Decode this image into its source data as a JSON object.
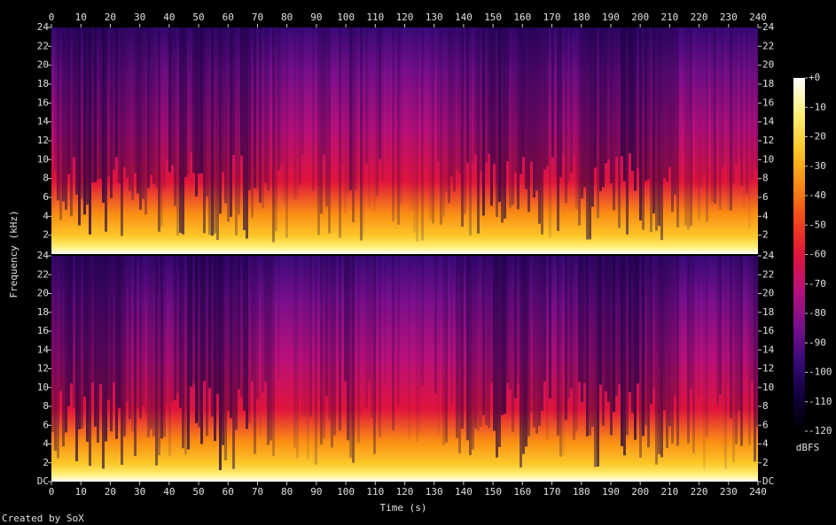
{
  "chart_data": {
    "type": "spectrogram",
    "x_label": "Time (s)",
    "y_label": "Frequency (kHz)",
    "footer": "Created by SoX",
    "xlim": [
      0,
      240
    ],
    "xticks": [
      0,
      10,
      20,
      30,
      40,
      50,
      60,
      70,
      80,
      90,
      100,
      110,
      120,
      130,
      140,
      150,
      160,
      170,
      180,
      190,
      200,
      210,
      220,
      230,
      240
    ],
    "channels": [
      {
        "ylim": [
          0,
          24
        ],
        "yticks": [
          2,
          4,
          6,
          8,
          10,
          12,
          14,
          16,
          18,
          20,
          22,
          24
        ]
      },
      {
        "ylim": [
          0,
          24
        ],
        "yticks": [
          {
            "value": 0,
            "label": "DC"
          },
          2,
          4,
          6,
          8,
          10,
          12,
          14,
          16,
          18,
          20,
          22,
          24
        ]
      }
    ],
    "colorbar": {
      "label": "dBFS",
      "lim": [
        -120,
        0
      ],
      "ticks": [
        {
          "value": 0,
          "label": "+0"
        },
        -10,
        -20,
        -30,
        -40,
        -50,
        -60,
        -70,
        -80,
        -90,
        -100,
        -110,
        -120
      ],
      "colormap": [
        "#000000",
        "#10003a",
        "#3a0a78",
        "#7a0f8c",
        "#b8107a",
        "#e0143c",
        "#f4481a",
        "#fa8c14",
        "#fcc828",
        "#fff07a",
        "#ffffff"
      ]
    }
  }
}
